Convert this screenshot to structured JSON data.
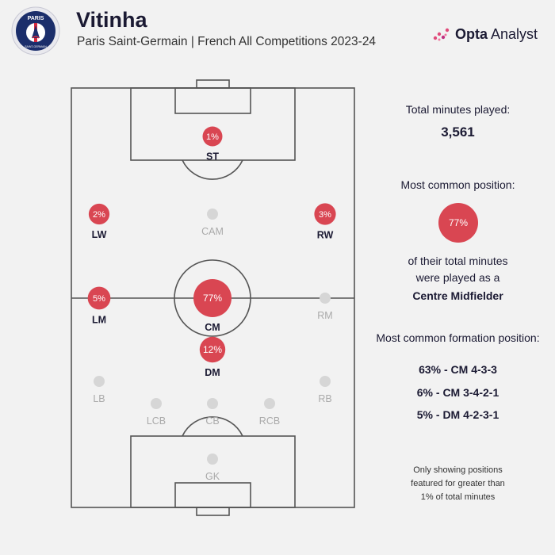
{
  "header": {
    "player_name": "Vitinha",
    "subtitle": "Paris Saint-Germain | French All Competitions 2023-24",
    "badge_text_top": "PARIS",
    "badge_text_bottom": "SAINT-GERMAIN",
    "brand_bold": "Opta",
    "brand_light": "Analyst"
  },
  "stats": {
    "total_minutes_label": "Total minutes played:",
    "total_minutes_value": "3,561",
    "common_position_label": "Most common position:",
    "common_position_pct": "77%",
    "played_as_line1": "of their total minutes",
    "played_as_line2": "were played as a",
    "common_position_name": "Centre Midfielder",
    "formation_label": "Most common formation position:",
    "formations": [
      "63% - CM 4-3-3",
      "6% - CM 3-4-2-1",
      "5% - DM 4-2-3-1"
    ],
    "footnote_line1": "Only showing positions",
    "footnote_line2": "featured for greater than",
    "footnote_line3": "1% of total minutes"
  },
  "colors": {
    "accent": "#d94652",
    "inactive": "#d6d6d6",
    "text": "#1b1a33",
    "muted": "#aaaaaa",
    "pitch_line": "#555555"
  },
  "chart_data": {
    "type": "scatter",
    "title": "",
    "unit": "% of total minutes",
    "positions": [
      {
        "code": "ST",
        "value": 1,
        "label": "1%"
      },
      {
        "code": "CAM",
        "value": null,
        "label": ""
      },
      {
        "code": "LW",
        "value": 2,
        "label": "2%"
      },
      {
        "code": "RW",
        "value": 3,
        "label": "3%"
      },
      {
        "code": "LM",
        "value": 5,
        "label": "5%"
      },
      {
        "code": "CM",
        "value": 77,
        "label": "77%"
      },
      {
        "code": "RM",
        "value": null,
        "label": ""
      },
      {
        "code": "DM",
        "value": 12,
        "label": "12%"
      },
      {
        "code": "LB",
        "value": null,
        "label": ""
      },
      {
        "code": "RB",
        "value": null,
        "label": ""
      },
      {
        "code": "LCB",
        "value": null,
        "label": ""
      },
      {
        "code": "CB",
        "value": null,
        "label": ""
      },
      {
        "code": "RCB",
        "value": null,
        "label": ""
      },
      {
        "code": "GK",
        "value": null,
        "label": ""
      }
    ]
  }
}
